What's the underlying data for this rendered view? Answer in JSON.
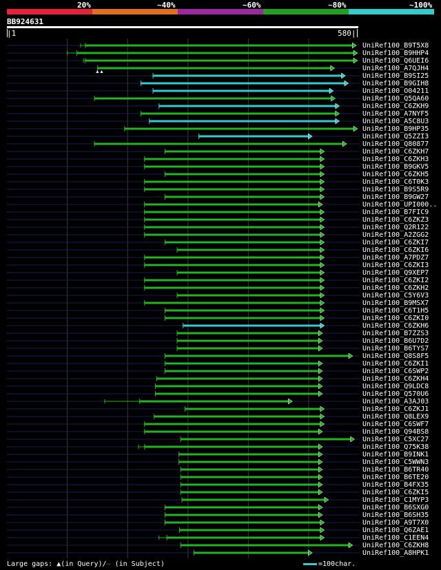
{
  "legend": {
    "labels": [
      "20%",
      "~40%",
      "~60%",
      "~80%",
      "~100%"
    ],
    "colors": [
      "#e8203a",
      "#e07020",
      "#9b2aa0",
      "#22a022",
      "#33cccc"
    ]
  },
  "query": {
    "name": "BB924631",
    "start": "|1",
    "end": "580|",
    "length": 580
  },
  "colors": {
    "green": "#22b422",
    "cyan": "#33cccc",
    "row_line": "#1a1a5a",
    "grid": "#3a3a3a"
  },
  "hits": [
    {
      "name": "UniRef100_B9T5X8",
      "start": 130,
      "end": 578,
      "color": "green",
      "weak_from": 122,
      "pre_from": 0
    },
    {
      "name": "UniRef100_B9HHP4",
      "start": 116,
      "end": 580,
      "color": "green",
      "weak_from": 100,
      "pre_from": 0
    },
    {
      "name": "UniRef100_Q6UEI6",
      "start": 130,
      "end": 580,
      "color": "green",
      "weak_from": 127,
      "pre_from": 0
    },
    {
      "name": "UniRef100_A7QJH4",
      "start": 150,
      "end": 542,
      "color": "green",
      "weak_from": 150,
      "pre_from": 0
    },
    {
      "name": "UniRef100_B9SI25",
      "start": 242,
      "end": 560,
      "color": "cyan",
      "weak_from": 0,
      "pre_from": 0
    },
    {
      "name": "UniRef100_B9GIH8",
      "start": 222,
      "end": 565,
      "color": "cyan",
      "weak_from": 0,
      "pre_from": 0
    },
    {
      "name": "UniRef100_O04211",
      "start": 242,
      "end": 540,
      "color": "cyan",
      "weak_from": 0,
      "pre_from": 0
    },
    {
      "name": "UniRef100_Q5QA60",
      "start": 145,
      "end": 543,
      "color": "green",
      "weak_from": 0,
      "pre_from": 0
    },
    {
      "name": "UniRef100_C6ZKH9",
      "start": 252,
      "end": 550,
      "color": "cyan",
      "weak_from": 0,
      "pre_from": 0
    },
    {
      "name": "UniRef100_A7NYF5",
      "start": 222,
      "end": 550,
      "color": "green",
      "weak_from": 0,
      "pre_from": 0
    },
    {
      "name": "UniRef100_A5C8U3",
      "start": 236,
      "end": 550,
      "color": "cyan",
      "weak_from": 0,
      "pre_from": 0
    },
    {
      "name": "UniRef100_B9HP35",
      "start": 195,
      "end": 580,
      "color": "green",
      "weak_from": 0,
      "pre_from": 0
    },
    {
      "name": "UniRef100_Q5ZZI3",
      "start": 318,
      "end": 505,
      "color": "cyan",
      "weak_from": 0,
      "pre_from": 0
    },
    {
      "name": "UniRef100_Q80877",
      "start": 145,
      "end": 562,
      "color": "green",
      "weak_from": 0,
      "pre_from": 0
    },
    {
      "name": "UniRef100_C6ZKH7",
      "start": 262,
      "end": 525,
      "color": "green"
    },
    {
      "name": "UniRef100_C6ZKH3",
      "start": 228,
      "end": 525,
      "color": "green"
    },
    {
      "name": "UniRef100_B9GKV5",
      "start": 228,
      "end": 525,
      "color": "green"
    },
    {
      "name": "UniRef100_C6ZKH5",
      "start": 262,
      "end": 525,
      "color": "green"
    },
    {
      "name": "UniRef100_C6T0K3",
      "start": 228,
      "end": 525,
      "color": "green"
    },
    {
      "name": "UniRef100_B9S5R9",
      "start": 228,
      "end": 525,
      "color": "green"
    },
    {
      "name": "UniRef100_B9GW27",
      "start": 262,
      "end": 525,
      "color": "green"
    },
    {
      "name": "UniRef100_UPI000..",
      "start": 228,
      "end": 522,
      "color": "green"
    },
    {
      "name": "UniRef100_B7FIC9",
      "start": 228,
      "end": 525,
      "color": "green"
    },
    {
      "name": "UniRef100_C6ZKZ3",
      "start": 228,
      "end": 525,
      "color": "green"
    },
    {
      "name": "UniRef100_Q2R122",
      "start": 228,
      "end": 525,
      "color": "green"
    },
    {
      "name": "UniRef100_A2ZGG2",
      "start": 228,
      "end": 525,
      "color": "green"
    },
    {
      "name": "UniRef100_C6ZKI7",
      "start": 262,
      "end": 525,
      "color": "green"
    },
    {
      "name": "UniRef100_C6ZKI6",
      "start": 282,
      "end": 525,
      "color": "green"
    },
    {
      "name": "UniRef100_A7PDZ7",
      "start": 228,
      "end": 525,
      "color": "green"
    },
    {
      "name": "UniRef100_C6ZKI3",
      "start": 228,
      "end": 525,
      "color": "green"
    },
    {
      "name": "UniRef100_Q9XEP7",
      "start": 282,
      "end": 525,
      "color": "green"
    },
    {
      "name": "UniRef100_C6ZKI2",
      "start": 228,
      "end": 525,
      "color": "green"
    },
    {
      "name": "UniRef100_C6ZKH2",
      "start": 228,
      "end": 525,
      "color": "green"
    },
    {
      "name": "UniRef100_C5Y6V3",
      "start": 282,
      "end": 525,
      "color": "green"
    },
    {
      "name": "UniRef100_B9MSX7",
      "start": 228,
      "end": 525,
      "color": "green"
    },
    {
      "name": "UniRef100_C6T1H5",
      "start": 262,
      "end": 525,
      "color": "green"
    },
    {
      "name": "UniRef100_C6ZKI0",
      "start": 262,
      "end": 525,
      "color": "green"
    },
    {
      "name": "UniRef100_C6ZKH6",
      "start": 292,
      "end": 525,
      "color": "cyan"
    },
    {
      "name": "UniRef100_B7ZZS3",
      "start": 282,
      "end": 522,
      "color": "green"
    },
    {
      "name": "UniRef100_B6U7D2",
      "start": 282,
      "end": 522,
      "color": "green"
    },
    {
      "name": "UniRef100_B6TYS7",
      "start": 282,
      "end": 522,
      "color": "green"
    },
    {
      "name": "UniRef100_Q8S8F5",
      "start": 262,
      "end": 572,
      "color": "green"
    },
    {
      "name": "UniRef100_C6ZKI1",
      "start": 262,
      "end": 522,
      "color": "green"
    },
    {
      "name": "UniRef100_C6SWP2",
      "start": 262,
      "end": 522,
      "color": "green"
    },
    {
      "name": "UniRef100_C6ZKH4",
      "start": 248,
      "end": 522,
      "color": "green"
    },
    {
      "name": "UniRef100_Q9LDC8",
      "start": 246,
      "end": 522,
      "color": "green"
    },
    {
      "name": "UniRef100_Q570U6",
      "start": 246,
      "end": 522,
      "color": "green"
    },
    {
      "name": "UniRef100_A3AJ03",
      "start": 220,
      "end": 472,
      "color": "green",
      "weak_from": 162,
      "pre_from": 0
    },
    {
      "name": "UniRef100_C6ZKJ1",
      "start": 295,
      "end": 525,
      "color": "green"
    },
    {
      "name": "UniRef100_Q8LEX9",
      "start": 244,
      "end": 525,
      "color": "green"
    },
    {
      "name": "UniRef100_C6SWF7",
      "start": 228,
      "end": 525,
      "color": "green"
    },
    {
      "name": "UniRef100_Q94BS8",
      "start": 228,
      "end": 522,
      "color": "green"
    },
    {
      "name": "UniRef100_C5XC27",
      "start": 288,
      "end": 575,
      "color": "green"
    },
    {
      "name": "UniRef100_Q75K38",
      "start": 228,
      "end": 522,
      "color": "green",
      "weak_from": 218,
      "pre_from": 0
    },
    {
      "name": "UniRef100_B9INK1",
      "start": 285,
      "end": 522,
      "color": "green"
    },
    {
      "name": "UniRef100_C5WWN3",
      "start": 285,
      "end": 522,
      "color": "green"
    },
    {
      "name": "UniRef100_B6TR40",
      "start": 288,
      "end": 522,
      "color": "green"
    },
    {
      "name": "UniRef100_B6TE20",
      "start": 288,
      "end": 522,
      "color": "green"
    },
    {
      "name": "UniRef100_B4FX35",
      "start": 288,
      "end": 522,
      "color": "green"
    },
    {
      "name": "UniRef100_C6ZKI5",
      "start": 288,
      "end": 522,
      "color": "green"
    },
    {
      "name": "UniRef100_C1MYP3",
      "start": 290,
      "end": 532,
      "color": "green"
    },
    {
      "name": "UniRef100_B6SXG0",
      "start": 262,
      "end": 522,
      "color": "green"
    },
    {
      "name": "UniRef100_B6SH35",
      "start": 262,
      "end": 522,
      "color": "green"
    },
    {
      "name": "UniRef100_A9T7X0",
      "start": 262,
      "end": 525,
      "color": "green"
    },
    {
      "name": "UniRef100_Q6ZAE1",
      "start": 286,
      "end": 525,
      "color": "green"
    },
    {
      "name": "UniRef100_C1EEN4",
      "start": 265,
      "end": 525,
      "color": "green",
      "weak_from": 252,
      "pre_from": 0
    },
    {
      "name": "UniRef100_C6ZKH8",
      "start": 288,
      "end": 572,
      "color": "green"
    },
    {
      "name": "UniRef100_A8HPK1",
      "start": 310,
      "end": 505,
      "color": "green"
    }
  ],
  "footer": {
    "large_gaps": "Large gaps:",
    "in_query": "(in Query)/",
    "dash": "—",
    "in_subject": "(in Subject)",
    "scale": "=100char."
  }
}
